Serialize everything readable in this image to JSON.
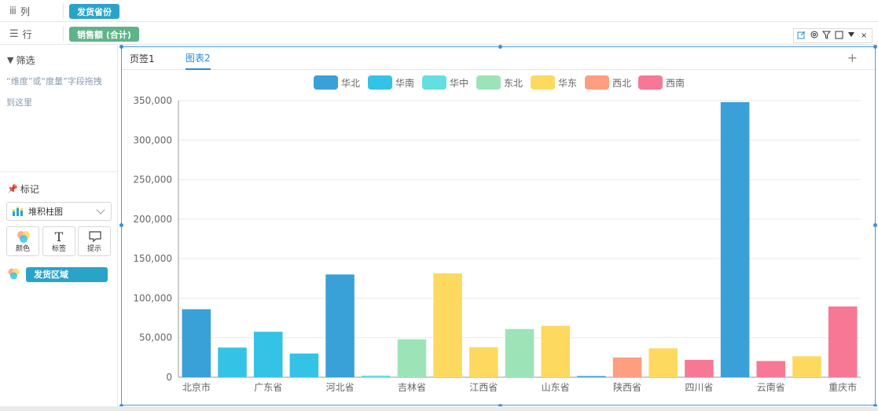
{
  "shelves": {
    "columns": {
      "icon": "iii",
      "label": "列",
      "pill": "发货省份"
    },
    "rows": {
      "icon": "☰",
      "label": "行",
      "pill": "销售额 (合计)"
    }
  },
  "left_panel": {
    "filter": {
      "title": "筛选",
      "hint": "“维度”或“度量”字段拖拽到这里"
    },
    "marks": {
      "title": "标记",
      "chart_type": "堆积柱图",
      "buttons": {
        "color": "颜色",
        "label": "标签",
        "tooltip": "提示"
      },
      "color_field": "发货区域"
    }
  },
  "tabs": {
    "tab1": "页签1",
    "tab2": "图表2",
    "add": "+"
  },
  "toolbar": {
    "edit": "edit-icon",
    "settings": "gear-icon",
    "filter": "filter-icon",
    "maximize": "square-icon",
    "menu": "caret-down-icon",
    "close": "×"
  },
  "colors": {
    "华北": "#3aa0d8",
    "华南": "#34c3e6",
    "华中": "#63dfe1",
    "东北": "#9ce4b8",
    "华东": "#fed95f",
    "西北": "#fd9e80",
    "西南": "#f77894"
  },
  "chart_data": {
    "type": "bar",
    "stacked": true,
    "legend": [
      "华北",
      "华南",
      "华中",
      "东北",
      "华东",
      "西北",
      "西南"
    ],
    "legend_position": "top",
    "grid": true,
    "ylim": [
      0,
      350000
    ],
    "yticks": [
      "0",
      "50,000",
      "100,000",
      "150,000",
      "200,000",
      "250,000",
      "300,000",
      "350,000"
    ],
    "xtick_labels": [
      "北京市",
      "广东省",
      "河北省",
      "吉林省",
      "江西省",
      "山东省",
      "陕西省",
      "四川省",
      "云南省",
      "重庆市"
    ],
    "bars": [
      {
        "region": "华北",
        "value": 86000
      },
      {
        "region": "华南",
        "value": 37500
      },
      {
        "region": "华南",
        "value": 57500
      },
      {
        "region": "华南",
        "value": 30000
      },
      {
        "region": "华北",
        "value": 130000
      },
      {
        "region": "华中",
        "value": 2000
      },
      {
        "region": "东北",
        "value": 48000
      },
      {
        "region": "华东",
        "value": 131500
      },
      {
        "region": "华东",
        "value": 38000
      },
      {
        "region": "东北",
        "value": 61000
      },
      {
        "region": "华东",
        "value": 65000
      },
      {
        "region": "华北",
        "value": 1500
      },
      {
        "region": "西北",
        "value": 25000
      },
      {
        "region": "华东",
        "value": 36500
      },
      {
        "region": "西南",
        "value": 22000
      },
      {
        "region": "华北",
        "value": 348000
      },
      {
        "region": "西南",
        "value": 20500
      },
      {
        "region": "华东",
        "value": 26500
      },
      {
        "region": "西南",
        "value": 89500
      }
    ]
  }
}
